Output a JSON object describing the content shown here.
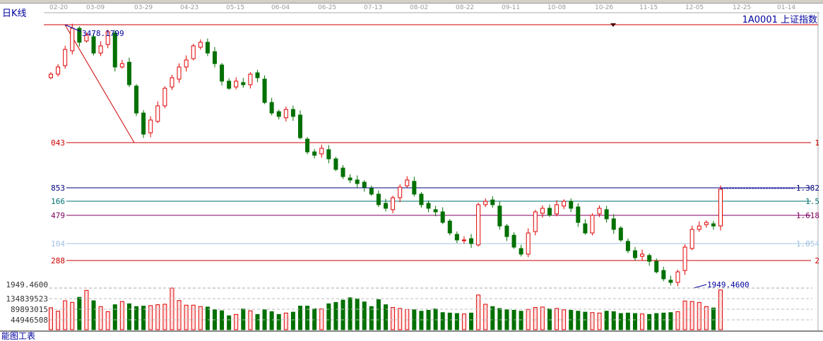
{
  "header": {
    "chart_type_label": "日K线",
    "symbol_label": "1A0001 上证指数"
  },
  "footer": {
    "label": "能图工表"
  },
  "chart_data": {
    "type": "candlestick",
    "x_tick_labels": [
      "02-20",
      "03-09",
      "03-29",
      "04-23",
      "05-15",
      "06-04",
      "06-25",
      "07-13",
      "08-02",
      "08-22",
      "09-11",
      "10-08",
      "10-26",
      "11-15",
      "12-05",
      "12-25",
      "01-14"
    ],
    "price_range": [
      1949.46,
      3478.1799
    ],
    "high_label": "3478.1799",
    "low_label": "1949.4600",
    "closes": [
      3188,
      3230,
      3333,
      3457,
      3375,
      3416,
      3312,
      3354,
      3437,
      3230,
      3250,
      3126,
      2960,
      2836,
      2919,
      3002,
      3105,
      3167,
      3230,
      3271,
      3354,
      3375,
      3312,
      3250,
      3147,
      3105,
      3147,
      3126,
      3188,
      3167,
      3022,
      2960,
      2940,
      2981,
      2940,
      2815,
      2732,
      2712,
      2753,
      2691,
      2629,
      2587,
      2567,
      2546,
      2525,
      2484,
      2422,
      2401,
      2463,
      2525,
      2567,
      2484,
      2422,
      2401,
      2380,
      2318,
      2256,
      2215,
      2215,
      2194,
      2422,
      2442,
      2422,
      2297,
      2235,
      2173,
      2132,
      2256,
      2380,
      2401,
      2360,
      2422,
      2442,
      2401,
      2318,
      2256,
      2360,
      2401,
      2339,
      2277,
      2215,
      2152,
      2111,
      2132,
      2090,
      2028,
      1987,
      1966,
      2028,
      2173,
      2277,
      2297,
      2318,
      2297,
      2513
    ],
    "volumes": [
      95,
      80,
      125,
      118,
      140,
      170,
      125,
      100,
      78,
      108,
      122,
      112,
      100,
      102,
      104,
      108,
      110,
      180,
      126,
      106,
      106,
      100,
      98,
      86,
      82,
      60,
      66,
      90,
      82,
      66,
      86,
      78,
      66,
      72,
      76,
      102,
      102,
      90,
      90,
      112,
      118,
      128,
      138,
      134,
      120,
      100,
      130,
      108,
      96,
      92,
      88,
      86,
      80,
      84,
      90,
      74,
      72,
      70,
      68,
      72,
      150,
      110,
      100,
      92,
      86,
      84,
      80,
      88,
      96,
      98,
      90,
      92,
      86,
      84,
      80,
      76,
      74,
      72,
      80,
      78,
      70,
      72,
      70,
      68,
      66,
      70,
      72,
      74,
      78,
      124,
      122,
      118,
      100,
      94,
      172
    ],
    "volume_axis_labels": [
      "134839523",
      "89893015",
      "44946508"
    ],
    "volume_pane_top_label": "1949.4600",
    "fib_levels": [
      {
        "ratio": "1",
        "left_label": "043",
        "color": "#cc0000"
      },
      {
        "ratio": "1.382",
        "left_label": "853",
        "color": "#000080"
      },
      {
        "ratio": "1.5",
        "left_label": "166",
        "color": "#007070"
      },
      {
        "ratio": "1.618",
        "left_label": "479",
        "color": "#800060"
      },
      {
        "ratio": "1.854",
        "left_label": "104",
        "color": "#a0c0e0"
      },
      {
        "ratio": "2",
        "left_label": "288",
        "color": "#cc0000"
      }
    ],
    "colors": {
      "up": "#e00000",
      "down": "#007000",
      "up_fill": "#ffe0e0",
      "annotation": "#0000a0"
    }
  }
}
